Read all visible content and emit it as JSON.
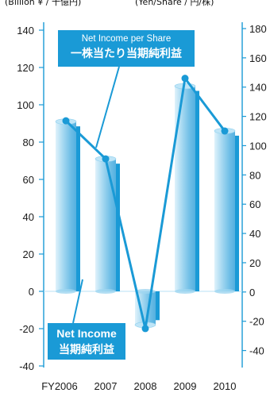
{
  "header": {
    "left_unit": "(Billion ¥ / 十億円)",
    "right_unit": "(Yen/Share / 円/株)"
  },
  "chart_data": {
    "type": "bar",
    "categories": [
      "FY2006",
      "2007",
      "2008",
      "2009",
      "2010"
    ],
    "series": [
      {
        "name": "Net Income",
        "name_ja": "当期純利益",
        "axis": "left",
        "kind": "bar",
        "values": [
          91,
          71,
          -18,
          110,
          86
        ]
      },
      {
        "name": "Net Income per Share",
        "name_ja": "一株当たり当期純利益",
        "axis": "right",
        "kind": "line",
        "values": [
          117,
          91,
          -25,
          146,
          110
        ]
      }
    ],
    "yaxis_left": {
      "min": -40,
      "max": 140,
      "ticks": [
        -40,
        -20,
        0,
        20,
        40,
        60,
        80,
        100,
        120,
        140
      ]
    },
    "yaxis_right": {
      "min": -50,
      "max": 180,
      "ticks": [
        -40,
        -20,
        0,
        20,
        40,
        60,
        80,
        100,
        120,
        140,
        160,
        180
      ]
    },
    "colors": {
      "bar": "#79c4e8",
      "line": "#1a9ad6",
      "label_box": "#1a9ad6",
      "baseline": "#b9e0f4"
    },
    "grid": false,
    "labels": {
      "eps_en": "Net Income per Share",
      "eps_ja": "一株当たり当期純利益",
      "ni_en": "Net Income",
      "ni_ja": "当期純利益"
    }
  }
}
